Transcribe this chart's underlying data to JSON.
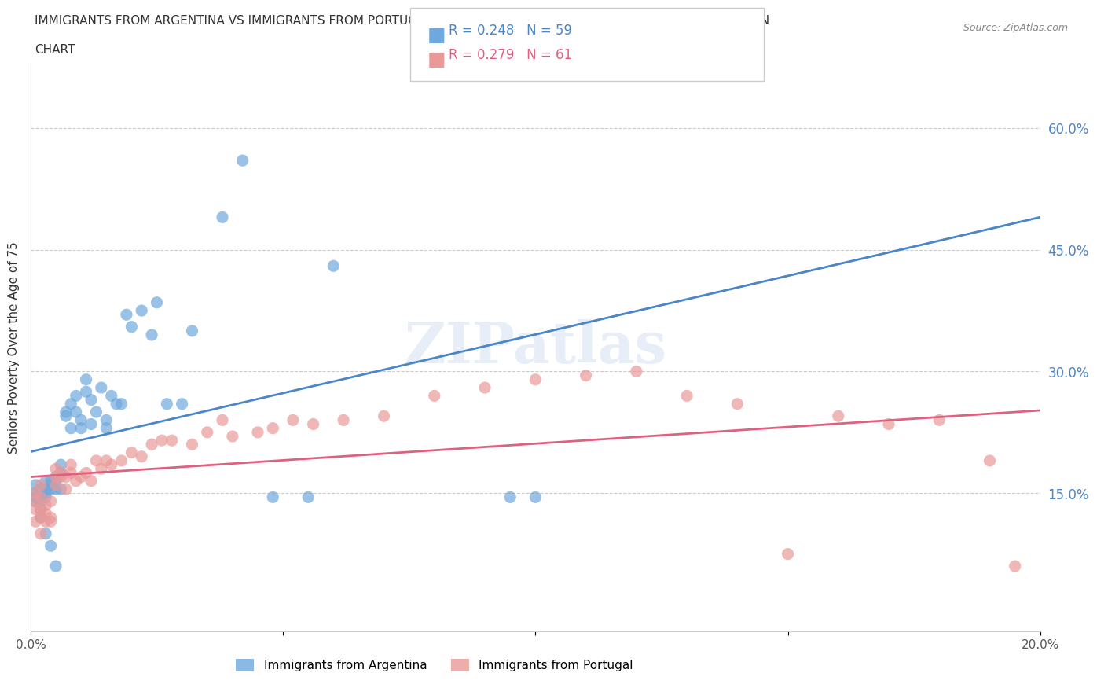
{
  "title_line1": "IMMIGRANTS FROM ARGENTINA VS IMMIGRANTS FROM PORTUGAL SENIORS POVERTY OVER THE AGE OF 75 CORRELATION",
  "title_line2": "CHART",
  "source": "Source: ZipAtlas.com",
  "ylabel": "Seniors Poverty Over the Age of 75",
  "xlabel": "",
  "watermark": "ZIPatlas",
  "argentina_color": "#6fa8dc",
  "portugal_color": "#ea9999",
  "argentina_line_color": "#4a86c8",
  "portugal_line_color": "#e06080",
  "argentina_R": 0.248,
  "argentina_N": 59,
  "portugal_R": 0.279,
  "portugal_N": 61,
  "right_ytick_labels": [
    "60.0%",
    "45.0%",
    "30.0%",
    "15.0%"
  ],
  "right_ytick_values": [
    0.6,
    0.45,
    0.3,
    0.15
  ],
  "xlim": [
    0.0,
    0.2
  ],
  "ylim": [
    -0.02,
    0.68
  ],
  "argentina_x": [
    0.001,
    0.001,
    0.001,
    0.001,
    0.002,
    0.002,
    0.002,
    0.002,
    0.002,
    0.003,
    0.003,
    0.003,
    0.003,
    0.003,
    0.004,
    0.004,
    0.004,
    0.004,
    0.005,
    0.005,
    0.005,
    0.005,
    0.006,
    0.006,
    0.006,
    0.007,
    0.007,
    0.008,
    0.008,
    0.009,
    0.009,
    0.01,
    0.01,
    0.011,
    0.011,
    0.012,
    0.012,
    0.013,
    0.014,
    0.015,
    0.015,
    0.016,
    0.017,
    0.018,
    0.019,
    0.02,
    0.022,
    0.024,
    0.025,
    0.027,
    0.03,
    0.032,
    0.038,
    0.042,
    0.048,
    0.055,
    0.06,
    0.095,
    0.1
  ],
  "argentina_y": [
    0.16,
    0.15,
    0.145,
    0.14,
    0.155,
    0.145,
    0.14,
    0.13,
    0.12,
    0.165,
    0.155,
    0.15,
    0.145,
    0.1,
    0.165,
    0.16,
    0.155,
    0.085,
    0.17,
    0.165,
    0.155,
    0.06,
    0.185,
    0.175,
    0.155,
    0.25,
    0.245,
    0.26,
    0.23,
    0.27,
    0.25,
    0.24,
    0.23,
    0.29,
    0.275,
    0.265,
    0.235,
    0.25,
    0.28,
    0.24,
    0.23,
    0.27,
    0.26,
    0.26,
    0.37,
    0.355,
    0.375,
    0.345,
    0.385,
    0.26,
    0.26,
    0.35,
    0.49,
    0.56,
    0.145,
    0.145,
    0.43,
    0.145,
    0.145
  ],
  "portugal_x": [
    0.001,
    0.001,
    0.001,
    0.001,
    0.002,
    0.002,
    0.002,
    0.002,
    0.002,
    0.003,
    0.003,
    0.003,
    0.004,
    0.004,
    0.004,
    0.005,
    0.005,
    0.005,
    0.006,
    0.006,
    0.007,
    0.007,
    0.008,
    0.008,
    0.009,
    0.01,
    0.011,
    0.012,
    0.013,
    0.014,
    0.015,
    0.016,
    0.018,
    0.02,
    0.022,
    0.024,
    0.026,
    0.028,
    0.032,
    0.035,
    0.038,
    0.04,
    0.045,
    0.048,
    0.052,
    0.056,
    0.062,
    0.07,
    0.08,
    0.09,
    0.1,
    0.11,
    0.12,
    0.13,
    0.14,
    0.15,
    0.16,
    0.17,
    0.18,
    0.19,
    0.195
  ],
  "portugal_y": [
    0.115,
    0.13,
    0.14,
    0.15,
    0.1,
    0.12,
    0.13,
    0.145,
    0.16,
    0.115,
    0.125,
    0.135,
    0.115,
    0.12,
    0.14,
    0.16,
    0.17,
    0.18,
    0.17,
    0.175,
    0.155,
    0.17,
    0.175,
    0.185,
    0.165,
    0.17,
    0.175,
    0.165,
    0.19,
    0.18,
    0.19,
    0.185,
    0.19,
    0.2,
    0.195,
    0.21,
    0.215,
    0.215,
    0.21,
    0.225,
    0.24,
    0.22,
    0.225,
    0.23,
    0.24,
    0.235,
    0.24,
    0.245,
    0.27,
    0.28,
    0.29,
    0.295,
    0.3,
    0.27,
    0.26,
    0.075,
    0.245,
    0.235,
    0.24,
    0.19,
    0.06
  ]
}
